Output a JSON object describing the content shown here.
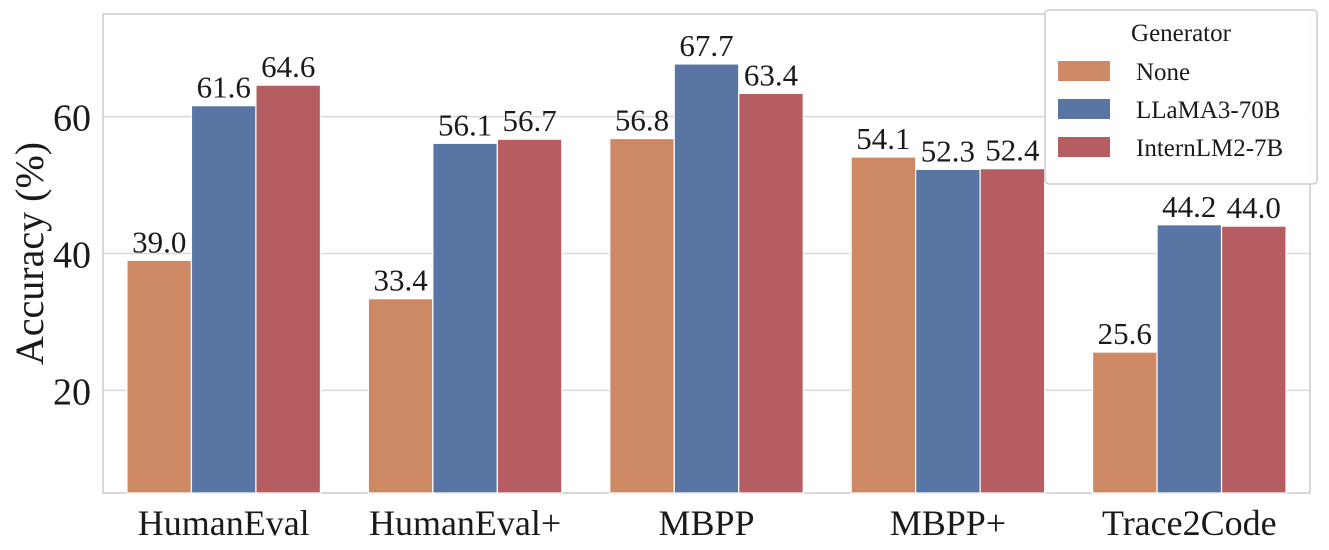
{
  "chart_data": {
    "type": "bar",
    "categories": [
      "HumanEval",
      "HumanEval+",
      "MBPP",
      "MBPP+",
      "Trace2Code"
    ],
    "series": [
      {
        "name": "None",
        "color": "#cc8963",
        "values": [
          39.0,
          33.4,
          56.8,
          54.1,
          25.6
        ]
      },
      {
        "name": "LLaMA3-70B",
        "color": "#5975a4",
        "values": [
          61.6,
          56.1,
          67.7,
          52.3,
          44.2
        ]
      },
      {
        "name": "InternLM2-7B",
        "color": "#b55d60",
        "values": [
          64.6,
          56.7,
          63.4,
          52.4,
          44.0
        ]
      }
    ],
    "value_labels": [
      [
        "39.0",
        "33.4",
        "56.8",
        "54.1",
        "25.6"
      ],
      [
        "61.6",
        "56.1",
        "67.7",
        "52.3",
        "44.2"
      ],
      [
        "64.6",
        "56.7",
        "63.4",
        "52.4",
        "44.0"
      ]
    ],
    "ylabel": "Accuracy (%)",
    "yticks": [
      20,
      40,
      60
    ],
    "ytick_labels": [
      "20",
      "40",
      "60"
    ],
    "ylim": [
      5,
      75
    ],
    "grid": true,
    "legend": {
      "title": "Generator",
      "placement": "top-right"
    }
  }
}
